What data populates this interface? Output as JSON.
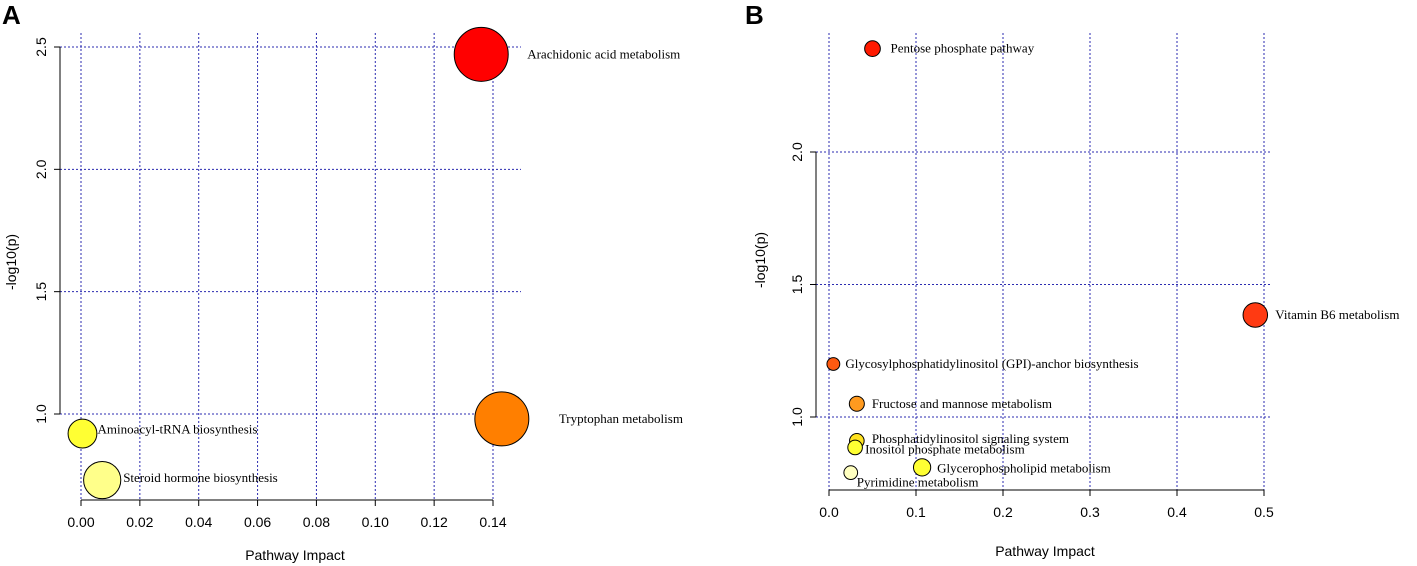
{
  "chart_data": [
    {
      "panel": "A",
      "type": "scatter",
      "title": "",
      "xlabel": "Pathway Impact",
      "ylabel": "-log10(p)",
      "xlim": [
        0.0,
        0.14
      ],
      "ylim": [
        0.7,
        2.55
      ],
      "xticks": [
        0.0,
        0.02,
        0.04,
        0.06,
        0.08,
        0.1,
        0.12,
        0.14
      ],
      "xtick_labels": [
        "0.00",
        "0.02",
        "0.04",
        "0.06",
        "0.08",
        "0.10",
        "0.12",
        "0.14"
      ],
      "yticks": [
        1.0,
        1.5,
        2.0,
        2.5
      ],
      "ytick_labels": [
        "1.0",
        "1.5",
        "2.0",
        "2.5"
      ],
      "points": [
        {
          "label": "Arachidonic acid metabolism",
          "x": 0.136,
          "y": 2.47,
          "size": 1.0,
          "color": "#ff0000"
        },
        {
          "label": "Tryptophan metabolism",
          "x": 0.143,
          "y": 0.98,
          "size": 1.0,
          "color": "#ff7f00"
        },
        {
          "label": "Aminoacyl-tRNA biosynthesis",
          "x": 0.0005,
          "y": 0.92,
          "size": 0.4,
          "color": "#ffff33"
        },
        {
          "label": "Steroid hormone biosynthesis",
          "x": 0.0072,
          "y": 0.73,
          "size": 0.6,
          "color": "#ffff8a"
        }
      ]
    },
    {
      "panel": "B",
      "type": "scatter",
      "title": "",
      "xlabel": "Pathway Impact",
      "ylabel": "-log10(p)",
      "xlim": [
        0.0,
        0.5
      ],
      "ylim": [
        0.72,
        2.4
      ],
      "xticks": [
        0.0,
        0.1,
        0.2,
        0.3,
        0.4,
        0.5
      ],
      "xtick_labels": [
        "0.0",
        "0.1",
        "0.2",
        "0.3",
        "0.4",
        "0.5"
      ],
      "yticks": [
        1.0,
        1.5,
        2.0
      ],
      "ytick_labels": [
        "1.0",
        "1.5",
        "2.0"
      ],
      "points": [
        {
          "label": "Pentose phosphate pathway",
          "x": 0.05,
          "y": 2.39,
          "size": 0.35,
          "color": "#ff1a00"
        },
        {
          "label": "Vitamin B6 metabolism",
          "x": 0.49,
          "y": 1.385,
          "size": 0.75,
          "color": "#ff3a12"
        },
        {
          "label": "Glycosylphosphatidylinositol (GPI)-anchor biosynthesis",
          "x": 0.005,
          "y": 1.2,
          "size": 0.22,
          "color": "#ff5a10"
        },
        {
          "label": "Fructose and mannose metabolism",
          "x": 0.032,
          "y": 1.05,
          "size": 0.32,
          "color": "#ff9a1f"
        },
        {
          "label": "Phosphatidylinositol signaling system",
          "x": 0.032,
          "y": 0.91,
          "size": 0.3,
          "color": "#ffe21f"
        },
        {
          "label": "Inositol phosphate metabolism",
          "x": 0.03,
          "y": 0.885,
          "size": 0.3,
          "color": "#ffff33"
        },
        {
          "label": "Glycerophospholipid metabolism",
          "x": 0.107,
          "y": 0.81,
          "size": 0.42,
          "color": "#ffff33"
        },
        {
          "label": "Pyrimidine metabolism",
          "x": 0.025,
          "y": 0.79,
          "size": 0.26,
          "color": "#ffffc0"
        }
      ]
    }
  ]
}
